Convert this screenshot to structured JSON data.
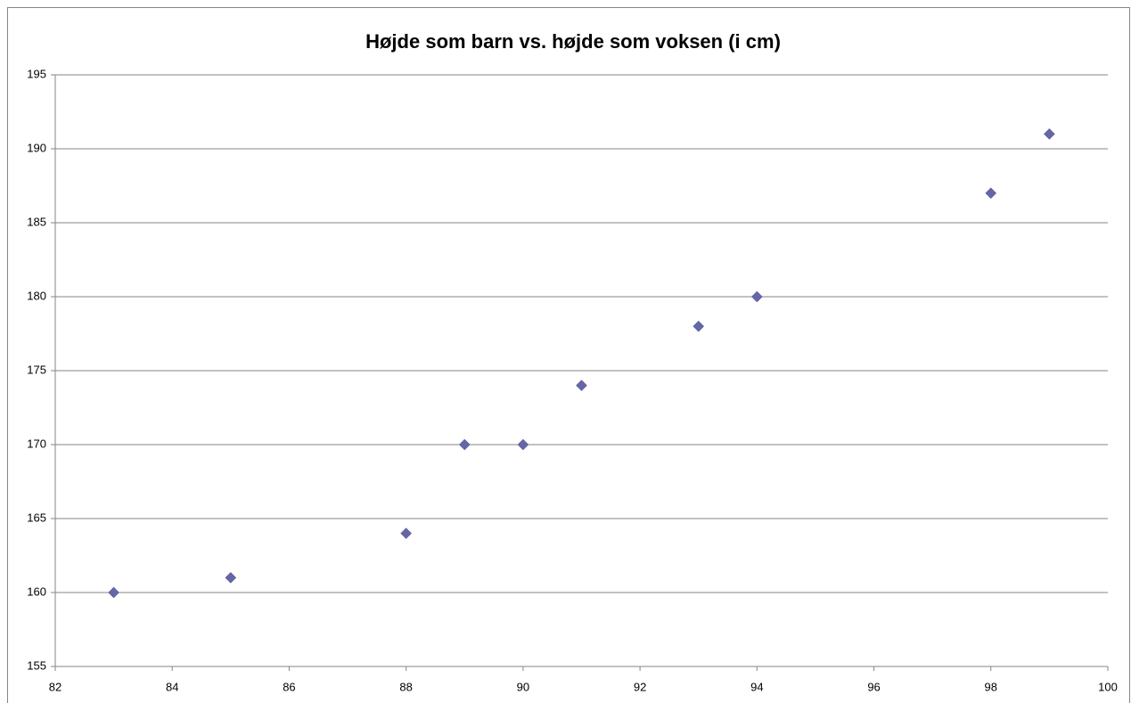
{
  "chart_data": {
    "type": "scatter",
    "title": "Højde som barn vs. højde som voksen (i cm)",
    "x": [
      83,
      85,
      88,
      89,
      90,
      91,
      93,
      94,
      98,
      99
    ],
    "values": [
      160,
      161,
      164,
      170,
      170,
      174,
      178,
      180,
      187,
      191
    ],
    "color": "#6466a8",
    "xlim": [
      82,
      100
    ],
    "xticks": [
      82,
      84,
      86,
      88,
      90,
      92,
      94,
      96,
      98,
      100
    ],
    "ylim": [
      155,
      195
    ],
    "yticks": [
      155,
      160,
      165,
      170,
      175,
      180,
      185,
      190,
      195
    ],
    "grid": true
  }
}
